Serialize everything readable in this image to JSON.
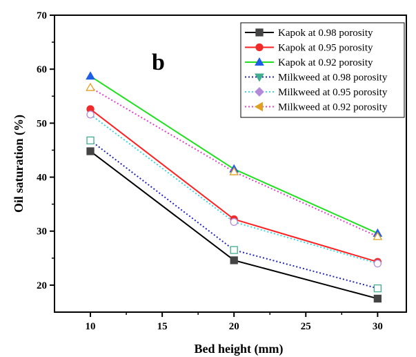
{
  "chart_data": {
    "type": "line",
    "panel_label": "b",
    "xlabel": "Bed height (mm)",
    "ylabel": "Oil saturation (%)",
    "xlim": [
      7.5,
      32
    ],
    "ylim": [
      15,
      70
    ],
    "xticks": [
      10,
      15,
      20,
      25,
      30
    ],
    "xtick_labels": [
      "10",
      "15",
      "20",
      "25",
      "30"
    ],
    "yticks": [
      20,
      30,
      40,
      50,
      60,
      70
    ],
    "ytick_labels": [
      "20",
      "30",
      "40",
      "50",
      "60",
      "70"
    ],
    "grid": false,
    "legend_position": "top-right",
    "x": [
      10,
      20,
      30
    ],
    "series": [
      {
        "name": "Kapok at 0.98 porosity",
        "values": [
          44.8,
          24.6,
          17.5
        ],
        "color": "#000000",
        "marker": "square",
        "filled": true,
        "dash": "solid",
        "marker_color": "#444444"
      },
      {
        "name": "Kapok at 0.95 porosity",
        "values": [
          52.6,
          32.2,
          24.3
        ],
        "color": "#ff1f1f",
        "marker": "circle",
        "filled": true,
        "dash": "solid",
        "marker_color": "#ee2a2a"
      },
      {
        "name": "Kapok at 0.92 porosity",
        "values": [
          58.7,
          41.5,
          29.6
        ],
        "color": "#1ee01e",
        "marker": "triangle-up",
        "filled": true,
        "dash": "solid",
        "marker_color": "#1f5ee6"
      },
      {
        "name": "Milkweed at 0.98 porosity",
        "values": [
          46.8,
          26.5,
          19.4
        ],
        "color": "#1f24b4",
        "marker": "square",
        "filled": false,
        "dash": "dotted",
        "marker_color": "#3fae8e"
      },
      {
        "name": "Milkweed at 0.95 porosity",
        "values": [
          51.6,
          31.7,
          24.0
        ],
        "color": "#36d6e8",
        "marker": "circle",
        "filled": false,
        "dash": "dotted",
        "marker_color": "#b48ad8"
      },
      {
        "name": "Milkweed at 0.92 porosity",
        "values": [
          56.6,
          41.0,
          29.0
        ],
        "color": "#e040c8",
        "marker": "triangle-up",
        "filled": false,
        "dash": "dotted",
        "marker_color": "#e0a020"
      }
    ]
  }
}
